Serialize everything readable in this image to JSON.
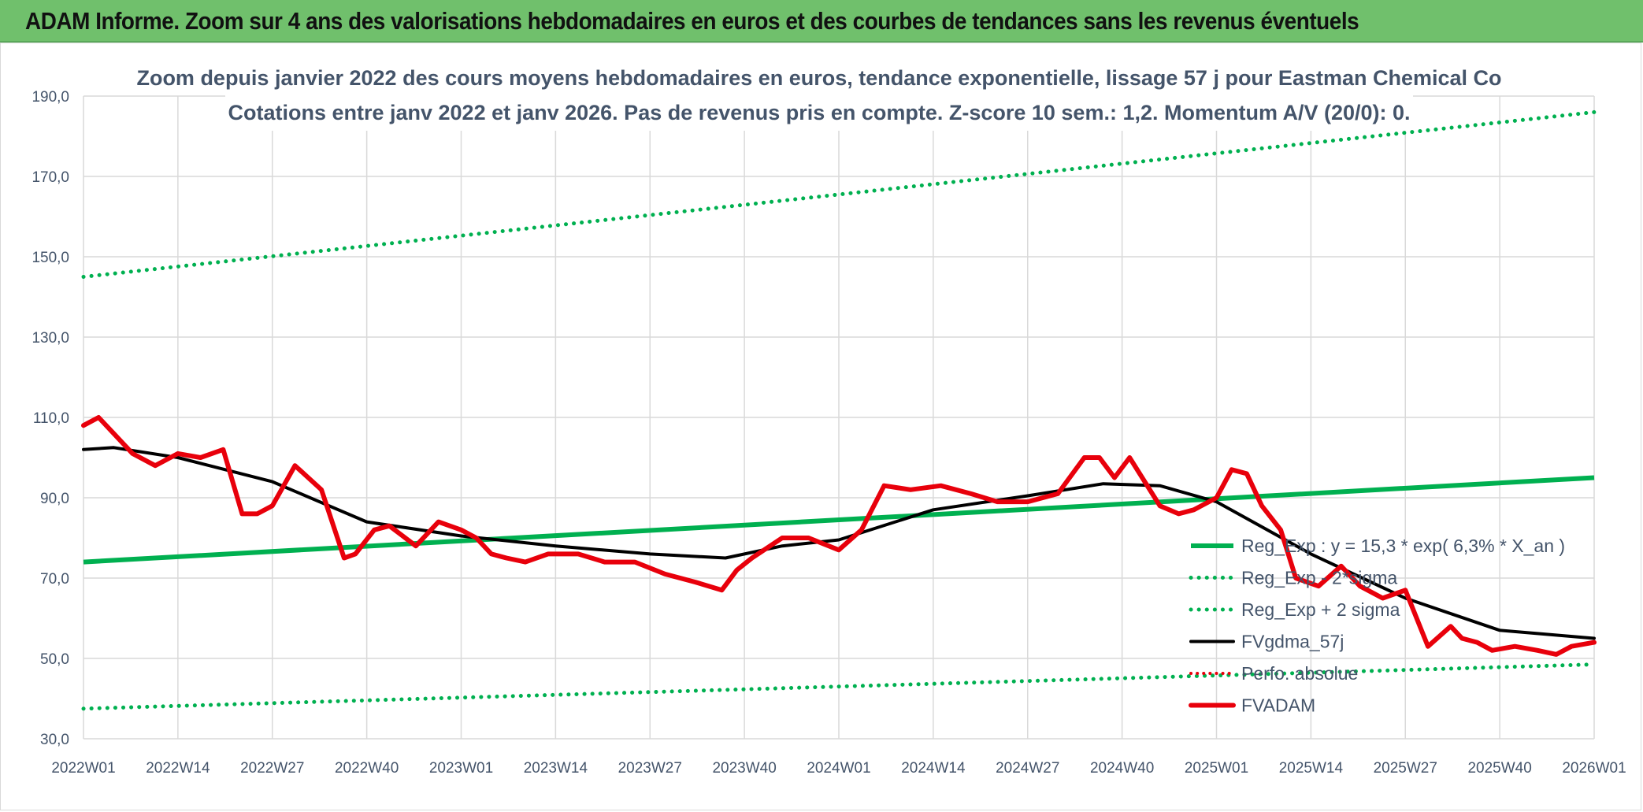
{
  "banner": {
    "title": "ADAM Informe. Zoom sur 4 ans des valorisations hebdomadaires en euros et des courbes de tendances sans les revenus éventuels"
  },
  "colors": {
    "green": "#00b050",
    "dotted_green": "#00b050",
    "black": "#000000",
    "red": "#e8000b",
    "grid": "#d9d9d9",
    "text": "#44546a"
  },
  "chart_data": {
    "type": "line",
    "title": "Zoom depuis janvier 2022 des cours moyens hebdomadaires en euros, tendance exponentielle, lissage 57 j pour Eastman Chemical Co",
    "subtitle": "Cotations entre janv 2022 et janv 2026. Pas de revenus pris en compte. Z-score 10 sem.: 1,2. Momentum A/V (20/0): 0.",
    "ylim": [
      30,
      190
    ],
    "yticks": [
      "30,0",
      "50,0",
      "70,0",
      "90,0",
      "110,0",
      "130,0",
      "150,0",
      "170,0",
      "190,0"
    ],
    "xticks": [
      "2022W01",
      "2022W14",
      "2022W27",
      "2022W40",
      "2023W01",
      "2023W14",
      "2023W27",
      "2023W40",
      "2024W01",
      "2024W14",
      "2024W27",
      "2024W40",
      "2025W01",
      "2025W14",
      "2025W27",
      "2025W40",
      "2026W01"
    ],
    "grid": true,
    "legend_position": "bottom-right",
    "series": [
      {
        "name": "Reg_Exp : y = 15,3 * exp( 6,3% *  X_an )",
        "style": "solid-green",
        "x": [
          0,
          4.0
        ],
        "values": [
          74,
          95
        ]
      },
      {
        "name": "Reg_Exp - 2*sigma",
        "style": "dotted-green",
        "x": [
          0,
          4.0
        ],
        "values": [
          37.5,
          48.5
        ]
      },
      {
        "name": "Reg_Exp + 2 sigma",
        "style": "dotted-green",
        "x": [
          0,
          4.0
        ],
        "values": [
          145,
          186
        ]
      },
      {
        "name": "FVgdma_57j",
        "style": "solid-black",
        "x": [
          0,
          0.08,
          0.25,
          0.5,
          0.75,
          1.0,
          1.25,
          1.5,
          1.7,
          1.85,
          2.0,
          2.25,
          2.5,
          2.7,
          2.85,
          3.0,
          3.25,
          3.5,
          3.75,
          4.0
        ],
        "values": [
          102,
          102.5,
          100,
          94,
          84,
          80.5,
          78,
          76,
          75,
          78,
          79.5,
          87,
          90.5,
          93.5,
          93,
          89,
          76,
          65,
          57,
          55
        ]
      },
      {
        "name": "Perfo. absolue",
        "style": "dotted-red",
        "x": [],
        "values": []
      },
      {
        "name": "FVADAM",
        "style": "solid-red",
        "x": [
          0,
          0.04,
          0.08,
          0.13,
          0.19,
          0.25,
          0.31,
          0.37,
          0.42,
          0.46,
          0.5,
          0.56,
          0.63,
          0.69,
          0.72,
          0.77,
          0.81,
          0.88,
          0.94,
          1.0,
          1.04,
          1.08,
          1.12,
          1.17,
          1.23,
          1.31,
          1.38,
          1.46,
          1.54,
          1.62,
          1.69,
          1.73,
          1.77,
          1.85,
          1.92,
          2.0,
          2.06,
          2.12,
          2.19,
          2.27,
          2.35,
          2.42,
          2.5,
          2.58,
          2.65,
          2.69,
          2.73,
          2.77,
          2.85,
          2.9,
          2.94,
          3.0,
          3.04,
          3.08,
          3.12,
          3.17,
          3.21,
          3.27,
          3.33,
          3.38,
          3.44,
          3.5,
          3.56,
          3.62,
          3.65,
          3.69,
          3.73,
          3.79,
          3.85,
          3.9,
          3.94,
          4.0
        ],
        "values": [
          108,
          110,
          106,
          101,
          98,
          101,
          100,
          102,
          86,
          86,
          88,
          98,
          92,
          75,
          76,
          82,
          83,
          78,
          84,
          82,
          80,
          76,
          75,
          74,
          76,
          76,
          74,
          74,
          71,
          69,
          67,
          72,
          75,
          80,
          80,
          77,
          82,
          93,
          92,
          93,
          91,
          89,
          89,
          91,
          100,
          100,
          95,
          100,
          88,
          86,
          87,
          90,
          97,
          96,
          88,
          82,
          70,
          68,
          73,
          68,
          65,
          67,
          53,
          58,
          55,
          54,
          52,
          53,
          52,
          51,
          53,
          54
        ]
      }
    ]
  }
}
